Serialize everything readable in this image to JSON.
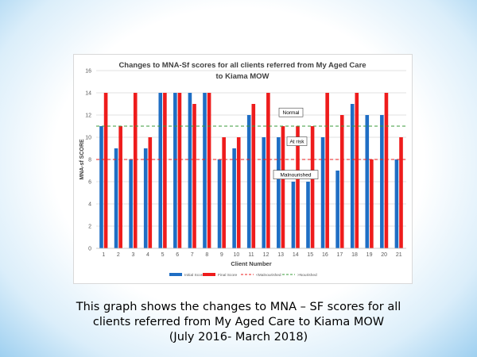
{
  "chart_data": {
    "type": "bar",
    "title_lines": [
      "Changes to MNA-Sf scores for all clients referred from My Aged Care",
      "to Kiama MOW"
    ],
    "xlabel": "Client Number",
    "ylabel": "MNA-sf SCORE",
    "ylim": [
      0,
      16
    ],
    "yticks": [
      "0",
      "2",
      "4",
      "6",
      "8",
      "10",
      "12",
      "14",
      "16"
    ],
    "categories": [
      "1",
      "2",
      "3",
      "4",
      "5",
      "6",
      "7",
      "8",
      "9",
      "10",
      "11",
      "12",
      "13",
      "14",
      "15",
      "16",
      "17",
      "18",
      "19",
      "20",
      "21"
    ],
    "series": [
      {
        "name": "Initial Score",
        "color": "#1f6ec4",
        "values": [
          11,
          9,
          8,
          9,
          14,
          14,
          14,
          14,
          8,
          9,
          12,
          10,
          10,
          6,
          6,
          10,
          7,
          13,
          12,
          12,
          8
        ]
      },
      {
        "name": "Final Score",
        "color": "#ee1c1c",
        "values": [
          14,
          11,
          14,
          10,
          14,
          14,
          13,
          14,
          10,
          10,
          13,
          14,
          11,
          11,
          11,
          14,
          12,
          14,
          8,
          14,
          10
        ]
      }
    ],
    "reference_lines": [
      {
        "name": "<Malnourished",
        "value": 8,
        "color": "#ee1c1c"
      },
      {
        "name": ">Nourished",
        "value": 11,
        "color": "#3a9b3a"
      }
    ],
    "annotations": [
      "Normal",
      "At risk",
      "Malnourished"
    ],
    "legend_position": "bottom",
    "grid": true
  },
  "caption": {
    "lines": [
      "This graph shows the changes to MNA – SF scores for all",
      "clients referred from My Aged Care to Kiama MOW",
      "(July 2016- March 2018)"
    ]
  }
}
